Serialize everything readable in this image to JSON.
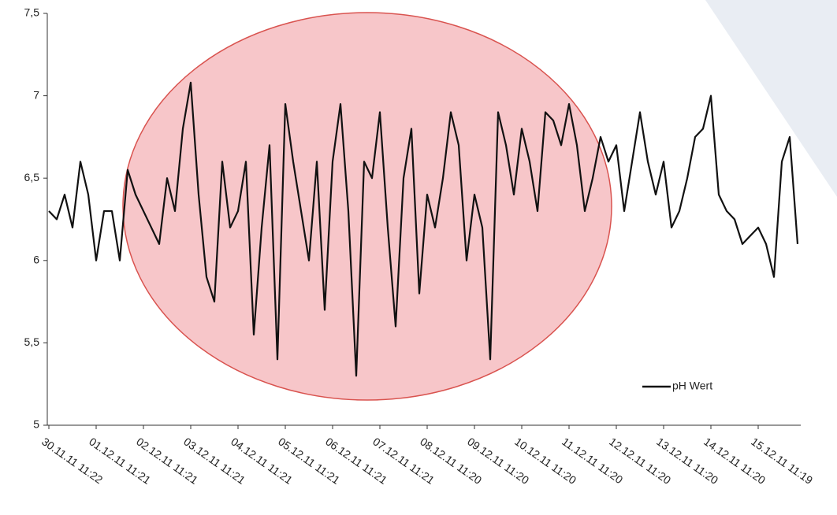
{
  "chart_data": {
    "type": "line",
    "x": [
      "30.11.11 11:22",
      null,
      null,
      null,
      null,
      null,
      "01.12.11 11:21",
      null,
      null,
      null,
      null,
      null,
      "02.12.11 11:21",
      null,
      null,
      null,
      null,
      null,
      "03.12.11 11:21",
      null,
      null,
      null,
      null,
      null,
      "04.12.11 11:21",
      null,
      null,
      null,
      null,
      null,
      "05.12.11 11:21",
      null,
      null,
      null,
      null,
      null,
      "06.12.11 11:21",
      null,
      null,
      null,
      null,
      null,
      "07.12.11 11:21",
      null,
      null,
      null,
      null,
      null,
      "08.12.11 11:20",
      null,
      null,
      null,
      null,
      null,
      "09.12.11 11:20",
      null,
      null,
      null,
      null,
      null,
      "10.12.11 11:20",
      null,
      null,
      null,
      null,
      null,
      "11.12.11 11:20",
      null,
      null,
      null,
      null,
      null,
      "12.12.11 11:20",
      null,
      null,
      null,
      null,
      null,
      "13.12.11 11:20",
      null,
      null,
      null,
      null,
      null,
      "14.12.11 11:20",
      null,
      null,
      null,
      null,
      null,
      "15.12.11 11:19",
      null,
      null,
      null,
      null,
      null
    ],
    "series": [
      {
        "name": "pH Wert",
        "color": "#111111",
        "values": [
          6.3,
          6.25,
          6.4,
          6.2,
          6.6,
          6.4,
          6.0,
          6.3,
          6.3,
          6.0,
          6.55,
          6.4,
          6.3,
          6.2,
          6.1,
          6.5,
          6.3,
          6.8,
          7.08,
          6.4,
          5.9,
          5.75,
          6.6,
          6.2,
          6.3,
          6.6,
          5.55,
          6.2,
          6.7,
          5.4,
          6.95,
          6.6,
          6.3,
          6.0,
          6.6,
          5.7,
          6.6,
          6.95,
          6.3,
          5.3,
          6.6,
          6.5,
          6.9,
          6.2,
          5.6,
          6.5,
          6.8,
          5.8,
          6.4,
          6.2,
          6.5,
          6.9,
          6.7,
          6.0,
          6.4,
          6.2,
          5.4,
          6.9,
          6.7,
          6.4,
          6.8,
          6.6,
          6.3,
          6.9,
          6.85,
          6.7,
          6.95,
          6.7,
          6.3,
          6.5,
          6.75,
          6.6,
          6.7,
          6.3,
          6.6,
          6.9,
          6.6,
          6.4,
          6.6,
          6.2,
          6.3,
          6.5,
          6.75,
          6.8,
          7.0,
          6.4,
          6.3,
          6.25,
          6.1,
          6.15,
          6.2,
          6.1,
          5.9,
          6.6,
          6.75,
          6.1
        ]
      }
    ],
    "ylim": [
      5,
      7.5
    ],
    "yticks": [
      5,
      {
        "value": 5.5,
        "label": "5,5"
      },
      6,
      {
        "value": 6.5,
        "label": "6,5"
      },
      7,
      {
        "value": 7.5,
        "label": "7,5"
      }
    ],
    "grid": false,
    "legend": "lower-right"
  }
}
